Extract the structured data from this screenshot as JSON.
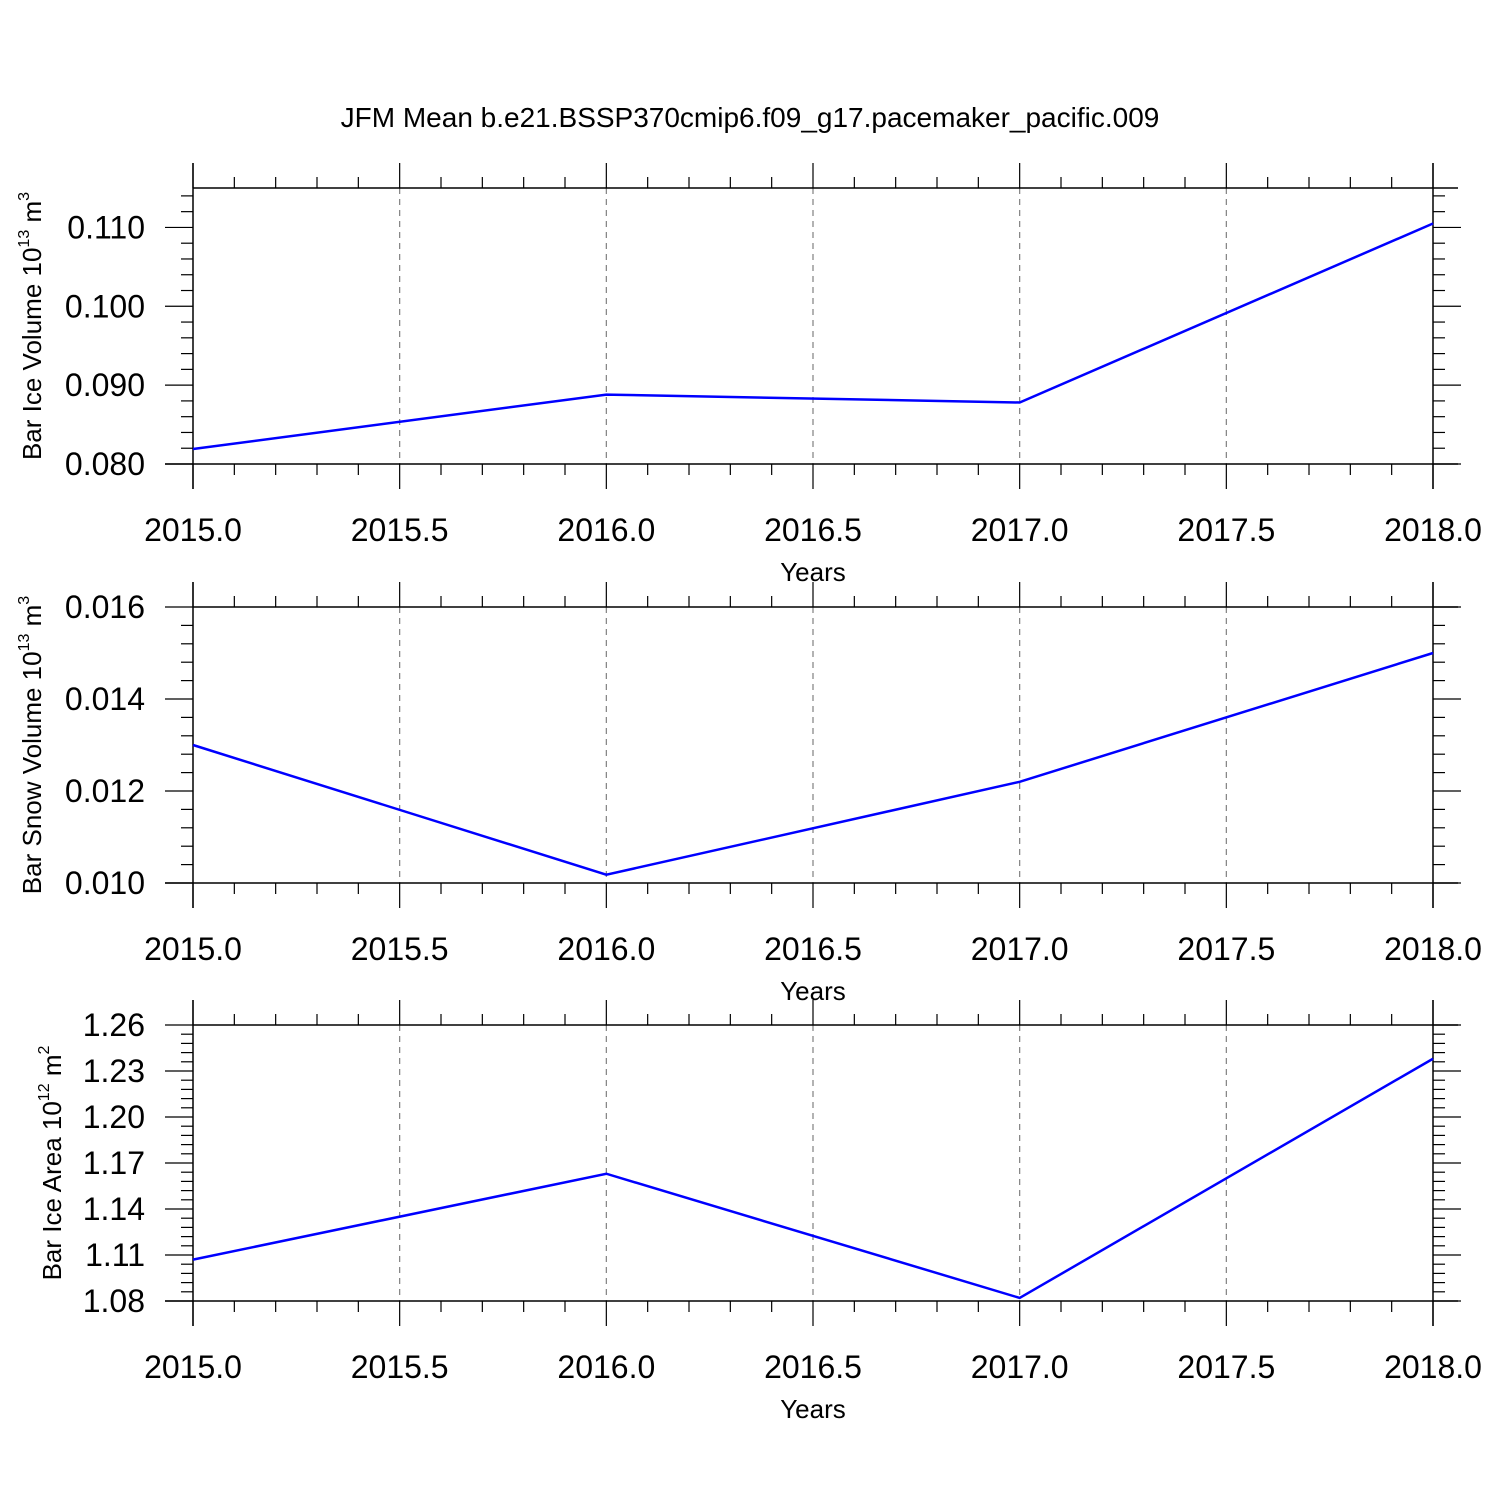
{
  "title": "JFM Mean b.e21.BSSP370cmip6.f09_g17.pacemaker_pacific.009",
  "colors": {
    "series": "#0000ff",
    "axis": "#000000",
    "grid": "#808080"
  },
  "chart_data": [
    {
      "type": "line",
      "xlabel": "Years",
      "ylabel": {
        "prefix": "Bar Ice Volume 10",
        "exp": "13",
        "unit": " m",
        "unit_exp": "3"
      },
      "x": [
        2015,
        2016,
        2017,
        2018
      ],
      "series": [
        {
          "values": [
            0.0819,
            0.0888,
            0.0878,
            0.1105
          ]
        }
      ],
      "xlim": [
        2015,
        2018
      ],
      "ylim": [
        0.08,
        0.115
      ],
      "xticks": [
        2015.0,
        2015.5,
        2016.0,
        2016.5,
        2017.0,
        2017.5,
        2018.0
      ],
      "xtick_labels": [
        "2015.0",
        "2015.5",
        "2016.0",
        "2016.5",
        "2017.0",
        "2017.5",
        "2018.0"
      ],
      "yticks": [
        0.08,
        0.09,
        0.1,
        0.11
      ],
      "ytick_labels": [
        "0.080",
        "0.090",
        "0.100",
        "0.110"
      ],
      "grid": "vertical-dashed"
    },
    {
      "type": "line",
      "xlabel": "Years",
      "ylabel": {
        "prefix": "Bar Snow Volume 10",
        "exp": "13",
        "unit": " m",
        "unit_exp": "3"
      },
      "x": [
        2015,
        2016,
        2017,
        2018
      ],
      "series": [
        {
          "values": [
            0.013,
            0.01018,
            0.0122,
            0.015
          ]
        }
      ],
      "xlim": [
        2015,
        2018
      ],
      "ylim": [
        0.01,
        0.016
      ],
      "xticks": [
        2015.0,
        2015.5,
        2016.0,
        2016.5,
        2017.0,
        2017.5,
        2018.0
      ],
      "xtick_labels": [
        "2015.0",
        "2015.5",
        "2016.0",
        "2016.5",
        "2017.0",
        "2017.5",
        "2018.0"
      ],
      "yticks": [
        0.01,
        0.012,
        0.014,
        0.016
      ],
      "ytick_labels": [
        "0.010",
        "0.012",
        "0.014",
        "0.016"
      ],
      "grid": "vertical-dashed"
    },
    {
      "type": "line",
      "xlabel": "Years",
      "ylabel": {
        "prefix": "Bar Ice Area 10",
        "exp": "12",
        "unit": " m",
        "unit_exp": "2"
      },
      "x": [
        2015,
        2016,
        2017,
        2018
      ],
      "series": [
        {
          "values": [
            1.107,
            1.163,
            1.082,
            1.238
          ]
        }
      ],
      "xlim": [
        2015,
        2018
      ],
      "ylim": [
        1.08,
        1.26
      ],
      "xticks": [
        2015.0,
        2015.5,
        2016.0,
        2016.5,
        2017.0,
        2017.5,
        2018.0
      ],
      "xtick_labels": [
        "2015.0",
        "2015.5",
        "2016.0",
        "2016.5",
        "2017.0",
        "2017.5",
        "2018.0"
      ],
      "yticks": [
        1.08,
        1.11,
        1.14,
        1.17,
        1.2,
        1.23,
        1.26
      ],
      "ytick_labels": [
        "1.08",
        "1.11",
        "1.14",
        "1.17",
        "1.20",
        "1.23",
        "1.26"
      ],
      "grid": "vertical-dashed"
    }
  ]
}
